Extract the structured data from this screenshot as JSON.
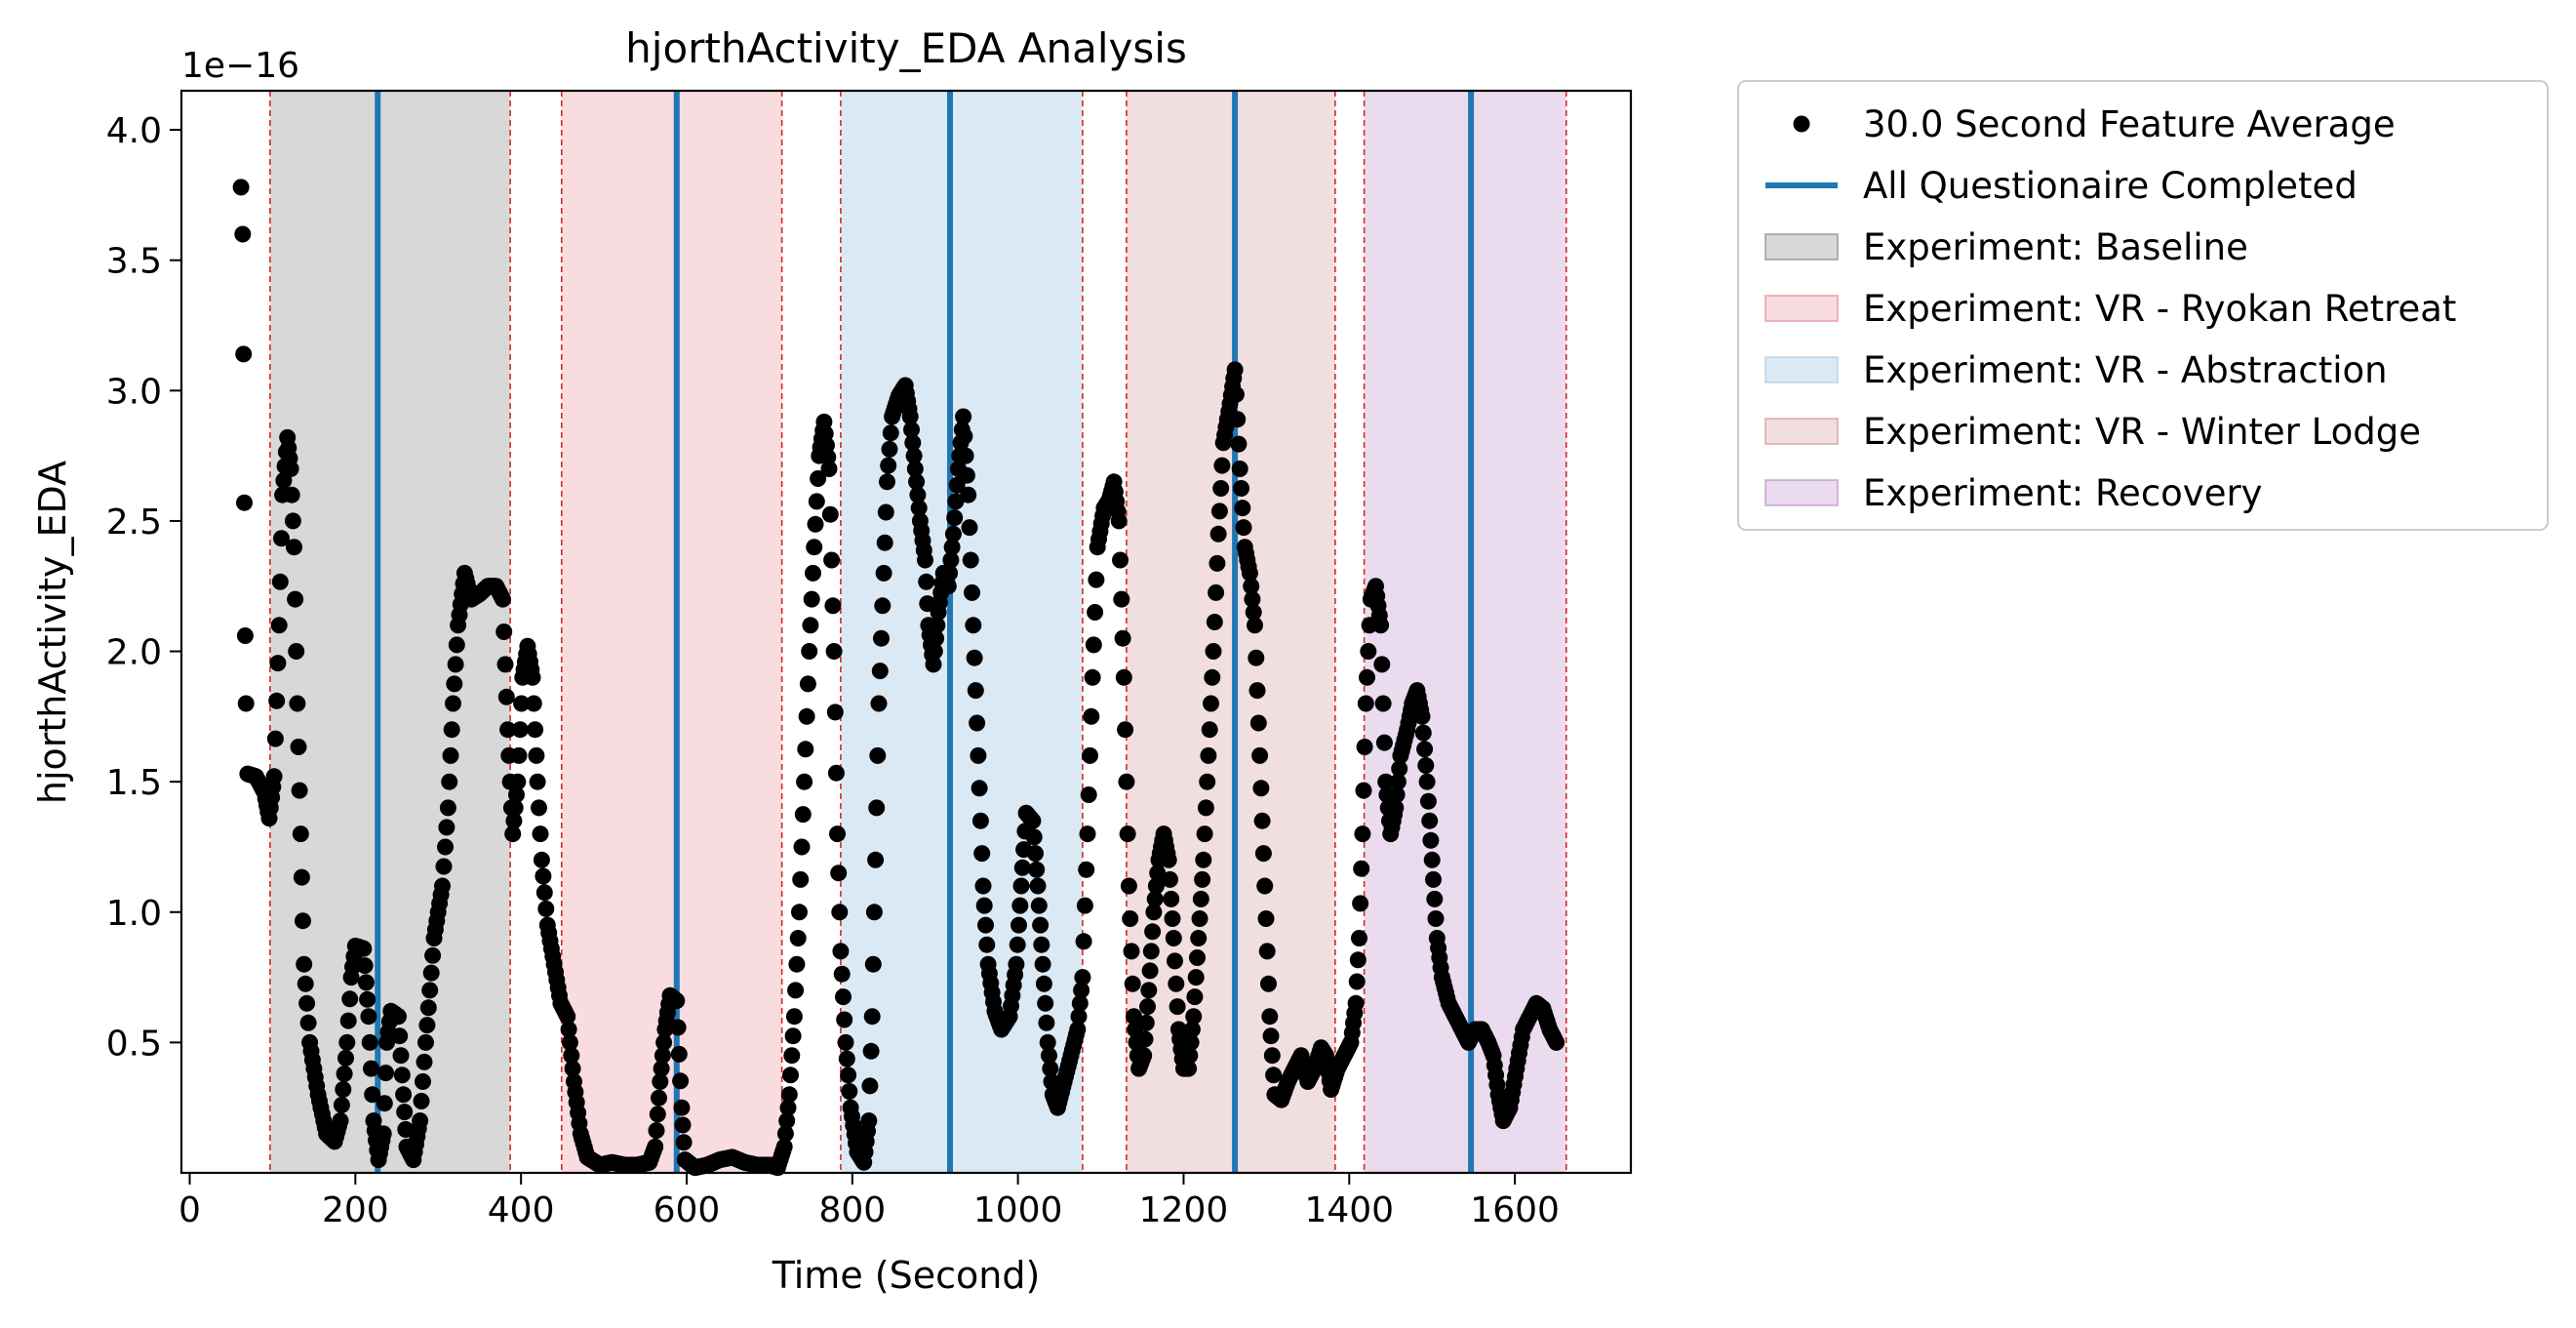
{
  "chart_data": {
    "type": "scatter",
    "title": "hjorthActivity_EDA Analysis",
    "xlabel": "Time (Second)",
    "ylabel": "hjorthActivity_EDA",
    "y_offset_label": "1e−16",
    "xlim": [
      -10,
      1740
    ],
    "ylim": [
      0.0,
      4.15
    ],
    "x_ticks": [
      0,
      200,
      400,
      600,
      800,
      1000,
      1200,
      1400,
      1600
    ],
    "y_ticks": [
      0.5,
      1.0,
      1.5,
      2.0,
      2.5,
      3.0,
      3.5,
      4.0
    ],
    "x_tick_labels": [
      "0",
      "200",
      "400",
      "600",
      "800",
      "1000",
      "1200",
      "1400",
      "1600"
    ],
    "y_tick_labels": [
      "0.5",
      "1.0",
      "1.5",
      "2.0",
      "2.5",
      "3.0",
      "3.5",
      "4.0"
    ],
    "grid": false,
    "legend_position": "outside-right-top",
    "point_color": "#000000",
    "vline_color": "#1f77b4",
    "boundary_color": "#d62728",
    "series": [
      {
        "name": "30.0 Second Feature Average",
        "key_points": [
          [
            62,
            3.78
          ],
          [
            64,
            3.6
          ],
          [
            65,
            3.14
          ],
          [
            66,
            2.57
          ],
          [
            67,
            2.06
          ],
          [
            68,
            1.8
          ],
          [
            70,
            1.53
          ],
          [
            80,
            1.52
          ],
          [
            90,
            1.46
          ],
          [
            96,
            1.36
          ],
          [
            102,
            1.52
          ],
          [
            108,
            2.1
          ],
          [
            112,
            2.6
          ],
          [
            118,
            2.82
          ],
          [
            122,
            2.7
          ],
          [
            126,
            2.4
          ],
          [
            130,
            1.8
          ],
          [
            134,
            1.3
          ],
          [
            138,
            0.8
          ],
          [
            145,
            0.5
          ],
          [
            155,
            0.3
          ],
          [
            165,
            0.15
          ],
          [
            175,
            0.12
          ],
          [
            182,
            0.2
          ],
          [
            190,
            0.5
          ],
          [
            195,
            0.75
          ],
          [
            200,
            0.87
          ],
          [
            210,
            0.86
          ],
          [
            216,
            0.6
          ],
          [
            222,
            0.2
          ],
          [
            228,
            0.05
          ],
          [
            234,
            0.15
          ],
          [
            238,
            0.5
          ],
          [
            243,
            0.62
          ],
          [
            252,
            0.6
          ],
          [
            258,
            0.3
          ],
          [
            262,
            0.1
          ],
          [
            270,
            0.05
          ],
          [
            278,
            0.2
          ],
          [
            285,
            0.5
          ],
          [
            295,
            0.9
          ],
          [
            305,
            1.1
          ],
          [
            312,
            1.4
          ],
          [
            318,
            1.8
          ],
          [
            324,
            2.1
          ],
          [
            332,
            2.3
          ],
          [
            340,
            2.2
          ],
          [
            350,
            2.22
          ],
          [
            360,
            2.25
          ],
          [
            370,
            2.25
          ],
          [
            378,
            2.2
          ],
          [
            384,
            1.7
          ],
          [
            390,
            1.3
          ],
          [
            396,
            1.5
          ],
          [
            402,
            1.9
          ],
          [
            408,
            2.02
          ],
          [
            414,
            1.9
          ],
          [
            420,
            1.5
          ],
          [
            425,
            1.2
          ],
          [
            432,
            0.95
          ],
          [
            440,
            0.8
          ],
          [
            448,
            0.65
          ],
          [
            456,
            0.6
          ],
          [
            464,
            0.35
          ],
          [
            472,
            0.15
          ],
          [
            480,
            0.06
          ],
          [
            495,
            0.03
          ],
          [
            510,
            0.04
          ],
          [
            525,
            0.03
          ],
          [
            540,
            0.03
          ],
          [
            555,
            0.04
          ],
          [
            562,
            0.1
          ],
          [
            568,
            0.35
          ],
          [
            574,
            0.55
          ],
          [
            580,
            0.68
          ],
          [
            588,
            0.66
          ],
          [
            594,
            0.25
          ],
          [
            598,
            0.05
          ],
          [
            610,
            0.02
          ],
          [
            625,
            0.03
          ],
          [
            640,
            0.05
          ],
          [
            655,
            0.06
          ],
          [
            670,
            0.04
          ],
          [
            685,
            0.03
          ],
          [
            700,
            0.03
          ],
          [
            710,
            0.02
          ],
          [
            718,
            0.1
          ],
          [
            724,
            0.3
          ],
          [
            730,
            0.6
          ],
          [
            736,
            1.0
          ],
          [
            742,
            1.5
          ],
          [
            748,
            2.0
          ],
          [
            754,
            2.4
          ],
          [
            760,
            2.75
          ],
          [
            766,
            2.88
          ],
          [
            772,
            2.7
          ],
          [
            778,
            2.0
          ],
          [
            782,
            1.3
          ],
          [
            786,
            0.85
          ],
          [
            792,
            0.5
          ],
          [
            798,
            0.25
          ],
          [
            806,
            0.08
          ],
          [
            814,
            0.04
          ],
          [
            820,
            0.2
          ],
          [
            824,
            0.6
          ],
          [
            828,
            1.2
          ],
          [
            832,
            1.8
          ],
          [
            838,
            2.3
          ],
          [
            842,
            2.65
          ],
          [
            848,
            2.9
          ],
          [
            856,
            2.98
          ],
          [
            864,
            3.02
          ],
          [
            870,
            2.9
          ],
          [
            876,
            2.7
          ],
          [
            882,
            2.5
          ],
          [
            888,
            2.35
          ],
          [
            892,
            2.1
          ],
          [
            898,
            1.95
          ],
          [
            904,
            2.15
          ],
          [
            910,
            2.3
          ],
          [
            916,
            2.25
          ],
          [
            922,
            2.45
          ],
          [
            928,
            2.7
          ],
          [
            934,
            2.9
          ],
          [
            940,
            2.6
          ],
          [
            946,
            2.1
          ],
          [
            952,
            1.6
          ],
          [
            958,
            1.1
          ],
          [
            964,
            0.8
          ],
          [
            972,
            0.62
          ],
          [
            980,
            0.55
          ],
          [
            990,
            0.6
          ],
          [
            998,
            0.8
          ],
          [
            1004,
            1.1
          ],
          [
            1010,
            1.38
          ],
          [
            1018,
            1.35
          ],
          [
            1024,
            1.1
          ],
          [
            1030,
            0.8
          ],
          [
            1036,
            0.5
          ],
          [
            1042,
            0.3
          ],
          [
            1048,
            0.25
          ],
          [
            1056,
            0.35
          ],
          [
            1064,
            0.45
          ],
          [
            1072,
            0.55
          ],
          [
            1078,
            0.75
          ],
          [
            1084,
            1.3
          ],
          [
            1090,
            1.9
          ],
          [
            1096,
            2.4
          ],
          [
            1104,
            2.55
          ],
          [
            1110,
            2.58
          ],
          [
            1116,
            2.65
          ],
          [
            1122,
            2.5
          ],
          [
            1128,
            1.9
          ],
          [
            1134,
            1.1
          ],
          [
            1140,
            0.6
          ],
          [
            1146,
            0.4
          ],
          [
            1152,
            0.45
          ],
          [
            1158,
            0.7
          ],
          [
            1164,
            1.0
          ],
          [
            1170,
            1.2
          ],
          [
            1176,
            1.3
          ],
          [
            1182,
            1.2
          ],
          [
            1188,
            0.9
          ],
          [
            1194,
            0.55
          ],
          [
            1200,
            0.4
          ],
          [
            1206,
            0.4
          ],
          [
            1212,
            0.6
          ],
          [
            1218,
            0.9
          ],
          [
            1224,
            1.2
          ],
          [
            1230,
            1.6
          ],
          [
            1236,
            2.0
          ],
          [
            1242,
            2.45
          ],
          [
            1248,
            2.8
          ],
          [
            1256,
            2.95
          ],
          [
            1262,
            3.08
          ],
          [
            1268,
            2.7
          ],
          [
            1274,
            2.4
          ],
          [
            1280,
            2.3
          ],
          [
            1286,
            2.1
          ],
          [
            1292,
            1.6
          ],
          [
            1298,
            1.1
          ],
          [
            1304,
            0.6
          ],
          [
            1310,
            0.3
          ],
          [
            1318,
            0.28
          ],
          [
            1326,
            0.35
          ],
          [
            1334,
            0.4
          ],
          [
            1342,
            0.45
          ],
          [
            1350,
            0.35
          ],
          [
            1358,
            0.4
          ],
          [
            1366,
            0.48
          ],
          [
            1372,
            0.45
          ],
          [
            1378,
            0.32
          ],
          [
            1386,
            0.4
          ],
          [
            1394,
            0.45
          ],
          [
            1402,
            0.5
          ],
          [
            1408,
            0.65
          ],
          [
            1412,
            0.9
          ],
          [
            1416,
            1.3
          ],
          [
            1420,
            1.8
          ],
          [
            1426,
            2.2
          ],
          [
            1432,
            2.25
          ],
          [
            1438,
            2.1
          ],
          [
            1444,
            1.5
          ],
          [
            1450,
            1.3
          ],
          [
            1456,
            1.4
          ],
          [
            1462,
            1.6
          ],
          [
            1470,
            1.7
          ],
          [
            1476,
            1.8
          ],
          [
            1482,
            1.85
          ],
          [
            1488,
            1.75
          ],
          [
            1494,
            1.5
          ],
          [
            1500,
            1.2
          ],
          [
            1506,
            0.9
          ],
          [
            1512,
            0.75
          ],
          [
            1520,
            0.65
          ],
          [
            1528,
            0.6
          ],
          [
            1536,
            0.55
          ],
          [
            1544,
            0.5
          ],
          [
            1552,
            0.55
          ],
          [
            1560,
            0.55
          ],
          [
            1568,
            0.5
          ],
          [
            1574,
            0.45
          ],
          [
            1580,
            0.3
          ],
          [
            1586,
            0.2
          ],
          [
            1594,
            0.25
          ],
          [
            1602,
            0.4
          ],
          [
            1610,
            0.55
          ],
          [
            1618,
            0.6
          ],
          [
            1626,
            0.65
          ],
          [
            1634,
            0.63
          ],
          [
            1642,
            0.55
          ],
          [
            1650,
            0.5
          ]
        ]
      },
      {
        "name": "All Questionaire Completed",
        "x_positions": [
          227,
          588,
          918,
          1262,
          1547
        ]
      }
    ],
    "phases": [
      {
        "name": "Experiment: Baseline",
        "start": 97,
        "end": 387,
        "color": "#7f7f7f",
        "opacity": 0.3
      },
      {
        "name": "Experiment: VR - Ryokan Retreat",
        "start": 449,
        "end": 715,
        "color": "#e6808b",
        "opacity": 0.28
      },
      {
        "name": "Experiment: VR - Abstraction",
        "start": 786,
        "end": 1078,
        "color": "#a6c8e4",
        "opacity": 0.4
      },
      {
        "name": "Experiment: VR - Winter Lodge",
        "start": 1131,
        "end": 1383,
        "color": "#cc8c8c",
        "opacity": 0.28
      },
      {
        "name": "Experiment: Recovery",
        "start": 1418,
        "end": 1662,
        "color": "#b987c7",
        "opacity": 0.3
      }
    ],
    "legend": [
      {
        "label": "30.0 Second Feature Average",
        "kind": "dot",
        "color": "#000000"
      },
      {
        "label": "All Questionaire Completed",
        "kind": "line",
        "color": "#1f77b4"
      },
      {
        "label": "Experiment: Baseline",
        "kind": "patch",
        "color": "#7f7f7f",
        "opacity": 0.3
      },
      {
        "label": "Experiment: VR - Ryokan Retreat",
        "kind": "patch",
        "color": "#e6808b",
        "opacity": 0.28
      },
      {
        "label": "Experiment: VR - Abstraction",
        "kind": "patch",
        "color": "#a6c8e4",
        "opacity": 0.4
      },
      {
        "label": "Experiment: VR - Winter Lodge",
        "kind": "patch",
        "color": "#cc8c8c",
        "opacity": 0.28
      },
      {
        "label": "Experiment: Recovery",
        "kind": "patch",
        "color": "#b987c7",
        "opacity": 0.3
      }
    ]
  }
}
